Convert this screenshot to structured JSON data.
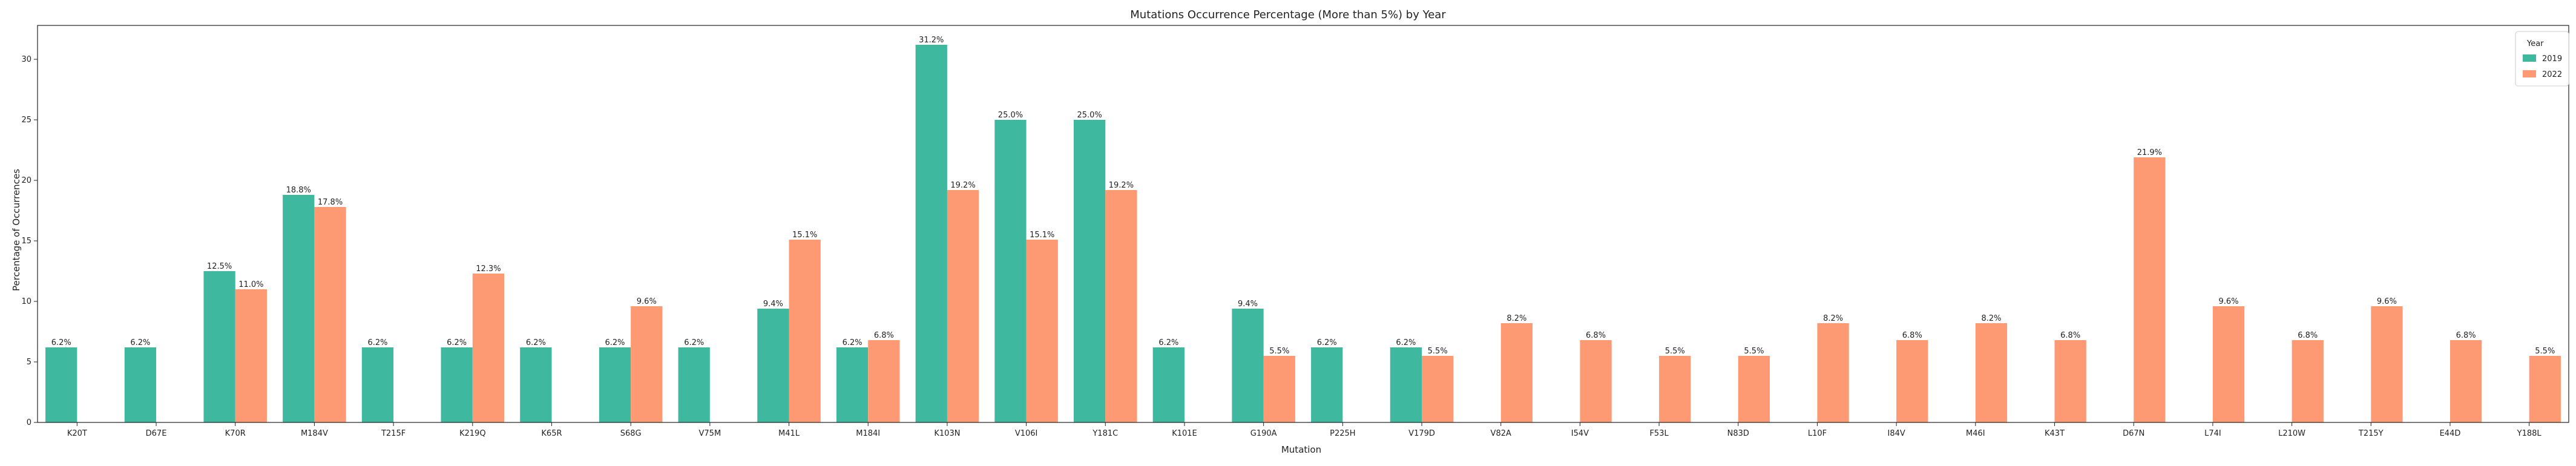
{
  "chart_data": {
    "type": "bar",
    "title": "Mutations Occurrence Percentage (More than 5%) by Year",
    "xlabel": "Mutation",
    "ylabel": "Percentage of Occurrences",
    "ylim": [
      0,
      32.8
    ],
    "yticks": [
      0,
      5,
      10,
      15,
      20,
      25,
      30
    ],
    "grid": false,
    "legend": {
      "title": "Year",
      "position": "top-right"
    },
    "categories": [
      "K20T",
      "D67E",
      "K70R",
      "M184V",
      "T215F",
      "K219Q",
      "K65R",
      "S68G",
      "V75M",
      "M41L",
      "M184I",
      "K103N",
      "V106I",
      "Y181C",
      "K101E",
      "G190A",
      "P225H",
      "V179D",
      "V82A",
      "I54V",
      "F53L",
      "N83D",
      "L10F",
      "I84V",
      "M46I",
      "K43T",
      "D67N",
      "L74I",
      "L210W",
      "T215Y",
      "E44D",
      "Y188L"
    ],
    "series": [
      {
        "name": "2019",
        "color": "#3fb8a0",
        "values": [
          6.2,
          6.2,
          12.5,
          18.8,
          6.2,
          6.2,
          6.2,
          6.2,
          6.2,
          9.4,
          6.2,
          31.2,
          25.0,
          25.0,
          6.2,
          9.4,
          6.2,
          6.2,
          null,
          null,
          null,
          null,
          null,
          null,
          null,
          null,
          null,
          null,
          null,
          null,
          null,
          null
        ]
      },
      {
        "name": "2022",
        "color": "#fe9a73",
        "values": [
          null,
          null,
          11.0,
          17.8,
          null,
          12.3,
          null,
          9.6,
          null,
          15.1,
          6.8,
          19.2,
          15.1,
          19.2,
          null,
          5.5,
          null,
          5.5,
          8.2,
          6.8,
          5.5,
          5.5,
          8.2,
          6.8,
          8.2,
          6.8,
          21.9,
          9.6,
          6.8,
          9.6,
          6.8,
          5.5
        ]
      }
    ],
    "bar_labels": [
      [
        "6.2%",
        "6.2%",
        "12.5%",
        "18.8%",
        "6.2%",
        "6.2%",
        "6.2%",
        "6.2%",
        "6.2%",
        "9.4%",
        "6.2%",
        "31.2%",
        "25.0%",
        "25.0%",
        "6.2%",
        "9.4%",
        "6.2%",
        "6.2%",
        null,
        null,
        null,
        null,
        null,
        null,
        null,
        null,
        null,
        null,
        null,
        null,
        null,
        null
      ],
      [
        null,
        null,
        "11.0%",
        "17.8%",
        null,
        "12.3%",
        null,
        "9.6%",
        null,
        "15.1%",
        "6.8%",
        "19.2%",
        "15.1%",
        "19.2%",
        null,
        "5.5%",
        null,
        "5.5%",
        "8.2%",
        "6.8%",
        "5.5%",
        "5.5%",
        "8.2%",
        "6.8%",
        "8.2%",
        "6.8%",
        "21.9%",
        "9.6%",
        "6.8%",
        "9.6%",
        "6.8%",
        "5.5%"
      ]
    ]
  }
}
